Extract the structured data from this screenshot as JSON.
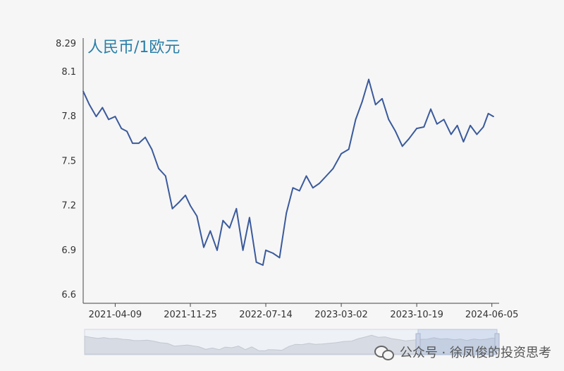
{
  "chart_data": {
    "type": "line",
    "title": "人民币/1欧元",
    "ylim": [
      6.6,
      8.29
    ],
    "y_ticks": [
      "8.29",
      "8.1",
      "7.8",
      "7.5",
      "7.2",
      "6.9",
      "6.6"
    ],
    "y_tick_values": [
      8.29,
      8.1,
      7.8,
      7.5,
      7.2,
      6.9,
      6.6
    ],
    "x_ticks": [
      "2021-04-09",
      "2021-11-25",
      "2022-07-14",
      "2023-03-02",
      "2023-10-19",
      "2024-06-05"
    ],
    "x_range": [
      "2021-01-01",
      "2024-06-10"
    ],
    "grid": false,
    "line_color": "#3a5a9c",
    "series": [
      {
        "x": [
          "2021-01-01",
          "2021-01-20",
          "2021-02-10",
          "2021-03-01",
          "2021-03-20",
          "2021-04-09",
          "2021-04-28",
          "2021-05-15",
          "2021-06-01",
          "2021-06-20",
          "2021-07-10",
          "2021-07-30",
          "2021-08-20",
          "2021-09-10",
          "2021-10-01",
          "2021-10-20",
          "2021-11-10",
          "2021-11-25",
          "2021-12-15",
          "2022-01-05",
          "2022-01-25",
          "2022-02-15",
          "2022-03-05",
          "2022-03-25",
          "2022-04-15",
          "2022-05-05",
          "2022-05-25",
          "2022-06-15",
          "2022-07-05",
          "2022-07-14",
          "2022-08-05",
          "2022-08-25",
          "2022-09-15",
          "2022-10-05",
          "2022-10-25",
          "2022-11-15",
          "2022-12-05",
          "2022-12-25",
          "2023-01-15",
          "2023-02-05",
          "2023-03-02",
          "2023-03-25",
          "2023-04-15",
          "2023-05-05",
          "2023-05-25",
          "2023-06-15",
          "2023-07-05",
          "2023-07-25",
          "2023-08-15",
          "2023-09-05",
          "2023-09-25",
          "2023-10-19",
          "2023-11-10",
          "2023-12-01",
          "2023-12-20",
          "2024-01-10",
          "2024-02-01",
          "2024-02-20",
          "2024-03-10",
          "2024-03-31",
          "2024-04-20",
          "2024-05-10",
          "2024-05-25",
          "2024-06-10"
        ],
        "values": [
          7.97,
          7.88,
          7.8,
          7.86,
          7.78,
          7.8,
          7.72,
          7.7,
          7.62,
          7.62,
          7.66,
          7.58,
          7.45,
          7.4,
          7.18,
          7.22,
          7.27,
          7.2,
          7.13,
          6.92,
          7.03,
          6.9,
          7.1,
          7.05,
          7.18,
          6.9,
          7.12,
          6.82,
          6.8,
          6.9,
          6.88,
          6.85,
          7.15,
          7.32,
          7.3,
          7.4,
          7.32,
          7.35,
          7.4,
          7.45,
          7.55,
          7.58,
          7.78,
          7.9,
          8.05,
          7.88,
          7.92,
          7.78,
          7.7,
          7.6,
          7.65,
          7.72,
          7.73,
          7.85,
          7.75,
          7.78,
          7.68,
          7.74,
          7.63,
          7.74,
          7.68,
          7.73,
          7.82,
          7.8
        ]
      }
    ]
  },
  "watermark": {
    "text": "公众号 · 徐凤俊的投资思考",
    "icon": "wechat-icon"
  }
}
